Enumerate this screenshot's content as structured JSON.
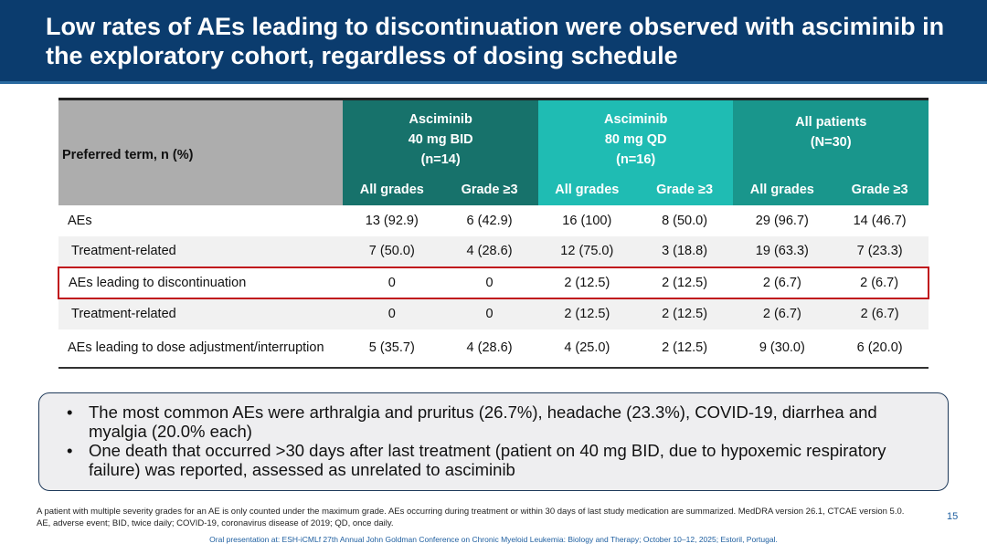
{
  "title": "Low rates of AEs leading to discontinuation were observed with asciminib in the exploratory cohort, regardless of dosing schedule",
  "table": {
    "row_header": "Preferred term, n (%)",
    "groups": [
      {
        "l1": "Asciminib",
        "l2": "40 mg BID",
        "l3": "(n=14)"
      },
      {
        "l1": "Asciminib",
        "l2": "80 mg QD",
        "l3": "(n=16)"
      },
      {
        "l1": "All patients",
        "l2": "(N=30)"
      }
    ],
    "subheaders": [
      "All grades",
      "Grade ≥3",
      "All grades",
      "Grade ≥3",
      "All grades",
      "Grade ≥3"
    ],
    "rows": [
      {
        "label": "AEs",
        "cells": [
          "13 (92.9)",
          "6 (42.9)",
          "16 (100)",
          "8 (50.0)",
          "29 (96.7)",
          "14 (46.7)"
        ]
      },
      {
        "label": "Treatment-related",
        "cells": [
          "7 (50.0)",
          "4 (28.6)",
          "12 (75.0)",
          "3 (18.8)",
          "19 (63.3)",
          "7 (23.3)"
        ]
      },
      {
        "label": "AEs leading to discontinuation",
        "cells": [
          "0",
          "0",
          "2 (12.5)",
          "2 (12.5)",
          "2 (6.7)",
          "2 (6.7)"
        ],
        "highlighted": true
      },
      {
        "label": "Treatment-related",
        "cells": [
          "0",
          "0",
          "2 (12.5)",
          "2 (12.5)",
          "2 (6.7)",
          "2 (6.7)"
        ]
      },
      {
        "label": "AEs leading to dose adjustment/interruption",
        "cells": [
          "5 (35.7)",
          "4 (28.6)",
          "4 (25.0)",
          "2 (12.5)",
          "9 (30.0)",
          "6 (20.0)"
        ]
      }
    ]
  },
  "bullets": [
    "The most common AEs were arthralgia and pruritus (26.7%), headache (23.3%), COVID-19, diarrhea and myalgia (20.0% each)",
    "One death that occurred >30 days after last treatment (patient on 40 mg BID, due to hypoxemic respiratory failure) was reported, assessed as unrelated to asciminib"
  ],
  "footnote": "A patient with multiple severity grades for an AE is only counted under the maximum grade. AEs occurring during treatment or within 30 days of last study medication are summarized. MedDRA version 26.1, CTCAE version 5.0. AE, adverse event; BID, twice daily; COVID-19, coronavirus disease of 2019; QD, once daily.",
  "page_number": "15",
  "conference": "Oral presentation at: ESH-iCMLf 27th Annual John Goldman Conference on Chronic Myeloid Leukemia: Biology and Therapy; October 10–12, 2025; Estoril, Portugal.",
  "colors": {
    "title_bar": "#0b3c6e",
    "group_40mg": "#17726b",
    "group_80mg": "#1fbcb3",
    "group_all": "#19968c",
    "highlight": "#c0141c"
  }
}
